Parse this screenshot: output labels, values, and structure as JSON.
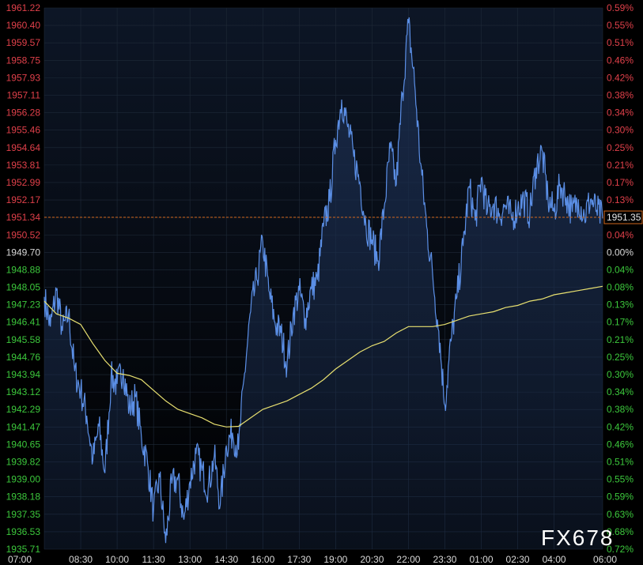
{
  "watermark": "FX678",
  "current_price_label": "1951.35",
  "colors": {
    "background": "#000000",
    "plot_bg_top": "#0d1626",
    "grid": "#1f2a38",
    "price_line": "#5b8fe6",
    "price_fill": "#1a2c4c",
    "ma_line": "#e8e070",
    "ref_line": "#d2691e",
    "axis_up": "#e0404a",
    "axis_down": "#3cc83c",
    "axis_neutral": "#d8d8d8",
    "x_label": "#d8d8d8",
    "watermark": "#ffffff"
  },
  "chart_data": {
    "type": "line",
    "title": "",
    "xlabel": "",
    "ylabel": "",
    "x_ticks": [
      "07:00",
      "08:30",
      "10:00",
      "11:30",
      "13:00",
      "14:30",
      "16:00",
      "17:30",
      "19:00",
      "20:30",
      "22:00",
      "23:30",
      "01:00",
      "02:30",
      "04:00",
      "06:00"
    ],
    "y_ticks": [
      "1961.22",
      "1960.40",
      "1959.57",
      "1958.75",
      "1957.93",
      "1957.11",
      "1956.28",
      "1955.46",
      "1954.64",
      "1953.81",
      "1952.99",
      "1952.17",
      "1951.34",
      "1950.52",
      "1949.70",
      "1948.88",
      "1948.05",
      "1947.23",
      "1946.41",
      "1945.58",
      "1944.76",
      "1943.94",
      "1943.12",
      "1942.29",
      "1941.47",
      "1940.65",
      "1939.82",
      "1939.00",
      "1938.18",
      "1937.35",
      "1936.53",
      "1935.71"
    ],
    "pct_ticks": [
      "0.59%",
      "0.55%",
      "0.51%",
      "0.46%",
      "0.42%",
      "0.38%",
      "0.34%",
      "0.30%",
      "0.25%",
      "0.21%",
      "0.17%",
      "0.13%",
      "0.08%",
      "0.04%",
      "0.00%",
      "0.04%",
      "0.08%",
      "0.13%",
      "0.17%",
      "0.21%",
      "0.25%",
      "0.30%",
      "0.34%",
      "0.38%",
      "0.42%",
      "0.46%",
      "0.51%",
      "0.55%",
      "0.59%",
      "0.63%",
      "0.68%",
      "0.72%"
    ],
    "ylim": [
      1935.71,
      1961.22
    ],
    "reference_price": 1949.7,
    "current_price": 1951.35,
    "x_hours": [
      0,
      1.5,
      3,
      4.5,
      6,
      7.5,
      9,
      10.5,
      12,
      13.5,
      15,
      16.5,
      18,
      19.5,
      21,
      23
    ],
    "series": [
      {
        "type": "line",
        "x": [
          0,
          0.25,
          0.5,
          0.75,
          1.0,
          1.25,
          1.5,
          1.75,
          2.0,
          2.25,
          2.5,
          2.75,
          3.0,
          3.25,
          3.5,
          3.75,
          4.0,
          4.25,
          4.5,
          4.75,
          5.0,
          5.25,
          5.5,
          5.75,
          6.0,
          6.25,
          6.5,
          6.75,
          7.0,
          7.25,
          7.5,
          7.75,
          8.0,
          8.25,
          8.5,
          8.75,
          9.0,
          9.25,
          9.5,
          9.75,
          10.0,
          10.25,
          10.5,
          10.75,
          11.0,
          11.25,
          11.5,
          11.75,
          12.0,
          12.25,
          12.5,
          12.75,
          13.0,
          13.25,
          13.5,
          13.75,
          14.0,
          14.25,
          14.5,
          14.75,
          15.0,
          15.25,
          15.5,
          15.75,
          16.0,
          16.25,
          16.5,
          16.75,
          17.0,
          17.25,
          17.5,
          17.75,
          18.0,
          18.25,
          18.5,
          18.75,
          19.0,
          19.25,
          19.5,
          19.75,
          20.0,
          20.25,
          20.5,
          20.75,
          21.0,
          21.25,
          21.5,
          21.75,
          22.0,
          22.25,
          22.5,
          22.75,
          23.0
        ],
        "values": [
          1947.6,
          1946.2,
          1947.9,
          1946.0,
          1946.8,
          1944.1,
          1943.2,
          1942.0,
          1939.9,
          1941.5,
          1939.3,
          1943.8,
          1943.5,
          1944.2,
          1942.3,
          1942.9,
          1941.0,
          1939.8,
          1937.5,
          1939.1,
          1936.0,
          1938.8,
          1939.0,
          1937.1,
          1938.9,
          1940.2,
          1939.4,
          1938.6,
          1940.1,
          1937.8,
          1940.6,
          1941.2,
          1940.4,
          1944.0,
          1946.9,
          1948.4,
          1950.2,
          1947.9,
          1946.4,
          1945.9,
          1944.4,
          1946.8,
          1947.9,
          1946.6,
          1948.0,
          1948.4,
          1950.9,
          1952.1,
          1955.0,
          1956.9,
          1955.6,
          1954.2,
          1953.0,
          1951.0,
          1950.3,
          1949.3,
          1951.8,
          1954.6,
          1952.9,
          1957.2,
          1960.5,
          1957.7,
          1953.9,
          1950.9,
          1948.6,
          1946.0,
          1942.5,
          1945.5,
          1947.6,
          1950.0,
          1952.8,
          1951.2,
          1953.2,
          1951.6,
          1952.0,
          1951.5,
          1951.9,
          1951.3,
          1951.8,
          1952.2,
          1951.5,
          1953.7,
          1954.5,
          1952.2,
          1951.6,
          1952.9,
          1952.3,
          1951.6,
          1952.2,
          1951.4,
          1952.2,
          1951.7,
          1951.3
        ]
      },
      {
        "type": "line",
        "x": [
          0,
          0.5,
          1.0,
          1.5,
          2.0,
          2.5,
          3.0,
          3.5,
          4.0,
          4.5,
          5.0,
          5.5,
          6.0,
          6.5,
          7.0,
          7.5,
          8.0,
          8.5,
          9.0,
          9.5,
          10.0,
          10.5,
          11.0,
          11.5,
          12.0,
          12.5,
          13.0,
          13.5,
          14.0,
          14.5,
          15.0,
          15.5,
          16.0,
          16.5,
          17.0,
          17.5,
          18.0,
          18.5,
          19.0,
          19.5,
          20.0,
          20.5,
          21.0,
          21.5,
          22.0,
          22.5,
          23.0
        ],
        "values": [
          1947.4,
          1946.8,
          1946.6,
          1946.3,
          1945.4,
          1944.6,
          1944.0,
          1943.9,
          1943.7,
          1943.2,
          1942.7,
          1942.3,
          1942.1,
          1941.9,
          1941.6,
          1941.47,
          1941.5,
          1941.9,
          1942.3,
          1942.5,
          1942.7,
          1943.0,
          1943.3,
          1943.7,
          1944.2,
          1944.6,
          1945.0,
          1945.3,
          1945.5,
          1945.9,
          1946.2,
          1946.2,
          1946.2,
          1946.3,
          1946.5,
          1946.7,
          1946.8,
          1946.9,
          1947.1,
          1947.2,
          1947.4,
          1947.5,
          1947.7,
          1947.8,
          1947.9,
          1948.0,
          1948.1
        ]
      }
    ],
    "grid": true
  }
}
